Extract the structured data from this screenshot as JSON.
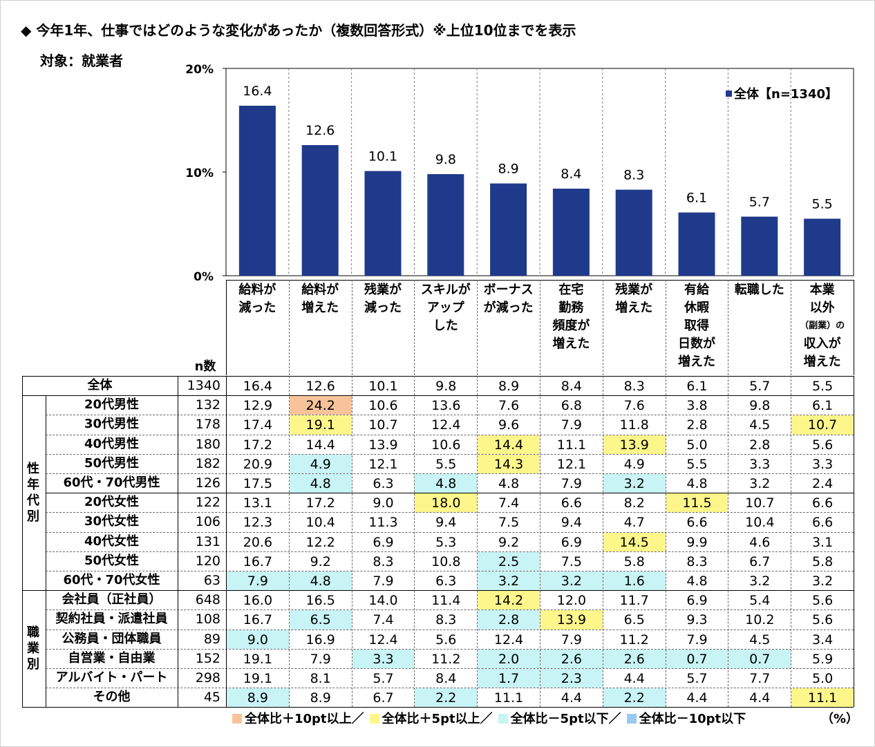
{
  "title": "◆ 今年1年、仕事ではどのような変化があったか（複数回答形式）※上位10位までを表示",
  "subject": "対象：就業者",
  "chart_data": {
    "type": "bar",
    "categories": [
      "給料が減った",
      "給料が増えた",
      "残業が減った",
      "スキルがアップした",
      "ボーナスが減った",
      "在宅勤務頻度が増えた",
      "残業が増えた",
      "有給休暇取得日数が増えた",
      "転職した",
      "本業以外（副業）の収入が増えた"
    ],
    "series": [
      {
        "name": "全体【n=1340】",
        "values": [
          16.4,
          12.6,
          10.1,
          9.8,
          8.9,
          8.4,
          8.3,
          6.1,
          5.7,
          5.5
        ]
      }
    ],
    "ylim": [
      0,
      20
    ],
    "yticks": [
      "0%",
      "10%",
      "20%"
    ],
    "bar_color": "#1f3a8a",
    "legend_position": "top-right"
  },
  "column_headers": [
    [
      "給料が",
      "減った"
    ],
    [
      "給料が",
      "増えた"
    ],
    [
      "残業が",
      "減った"
    ],
    [
      "スキルが",
      "アップ",
      "した"
    ],
    [
      "ボーナス",
      "が減った"
    ],
    [
      "在宅",
      "勤務",
      "頻度が",
      "増えた"
    ],
    [
      "残業が",
      "増えた"
    ],
    [
      "有給",
      "休暇",
      "取得",
      "日数が",
      "増えた"
    ],
    [
      "転職した"
    ],
    [
      "本業",
      "以外",
      "（副業）の",
      "収入が",
      "増えた"
    ]
  ],
  "n_header": "n数",
  "groups": [
    {
      "label": "性年代別",
      "start": 1,
      "end": 10
    },
    {
      "label": "職業別",
      "start": 11,
      "end": 16
    }
  ],
  "rows": [
    {
      "label": "全体",
      "n": "1340",
      "values": [
        "16.4",
        "12.6",
        "10.1",
        "9.8",
        "8.9",
        "8.4",
        "8.3",
        "6.1",
        "5.7",
        "5.5"
      ],
      "hl": [
        "",
        "",
        "",
        "",
        "",
        "",
        "",
        "",
        "",
        ""
      ]
    },
    {
      "label": "20代男性",
      "n": "132",
      "values": [
        "12.9",
        "24.2",
        "10.6",
        "13.6",
        "7.6",
        "6.8",
        "7.6",
        "3.8",
        "9.8",
        "6.1"
      ],
      "hl": [
        "",
        "o",
        "",
        "",
        "",
        "",
        "",
        "",
        "",
        ""
      ]
    },
    {
      "label": "30代男性",
      "n": "178",
      "values": [
        "17.4",
        "19.1",
        "10.7",
        "12.4",
        "9.6",
        "7.9",
        "11.8",
        "2.8",
        "4.5",
        "10.7"
      ],
      "hl": [
        "",
        "y",
        "",
        "",
        "",
        "",
        "",
        "",
        "",
        "y"
      ]
    },
    {
      "label": "40代男性",
      "n": "180",
      "values": [
        "17.2",
        "14.4",
        "13.9",
        "10.6",
        "14.4",
        "11.1",
        "13.9",
        "5.0",
        "2.8",
        "5.6"
      ],
      "hl": [
        "",
        "",
        "",
        "",
        "y",
        "",
        "y",
        "",
        "",
        ""
      ]
    },
    {
      "label": "50代男性",
      "n": "182",
      "values": [
        "20.9",
        "4.9",
        "12.1",
        "5.5",
        "14.3",
        "12.1",
        "4.9",
        "5.5",
        "3.3",
        "3.3"
      ],
      "hl": [
        "",
        "c",
        "",
        "",
        "y",
        "",
        "",
        "",
        "",
        ""
      ]
    },
    {
      "label": "60代・70代男性",
      "n": "126",
      "values": [
        "17.5",
        "4.8",
        "6.3",
        "4.8",
        "4.8",
        "7.9",
        "3.2",
        "4.8",
        "3.2",
        "2.4"
      ],
      "hl": [
        "",
        "c",
        "",
        "c",
        "",
        "",
        "c",
        "",
        "",
        ""
      ]
    },
    {
      "label": "20代女性",
      "n": "122",
      "values": [
        "13.1",
        "17.2",
        "9.0",
        "18.0",
        "7.4",
        "6.6",
        "8.2",
        "11.5",
        "10.7",
        "6.6"
      ],
      "hl": [
        "",
        "",
        "",
        "y",
        "",
        "",
        "",
        "y",
        "",
        ""
      ]
    },
    {
      "label": "30代女性",
      "n": "106",
      "values": [
        "12.3",
        "10.4",
        "11.3",
        "9.4",
        "7.5",
        "9.4",
        "4.7",
        "6.6",
        "10.4",
        "6.6"
      ],
      "hl": [
        "",
        "",
        "",
        "",
        "",
        "",
        "",
        "",
        "",
        ""
      ]
    },
    {
      "label": "40代女性",
      "n": "131",
      "values": [
        "20.6",
        "12.2",
        "6.9",
        "5.3",
        "9.2",
        "6.9",
        "14.5",
        "9.9",
        "4.6",
        "3.1"
      ],
      "hl": [
        "",
        "",
        "",
        "",
        "",
        "",
        "y",
        "",
        "",
        ""
      ]
    },
    {
      "label": "50代女性",
      "n": "120",
      "values": [
        "16.7",
        "9.2",
        "8.3",
        "10.8",
        "2.5",
        "7.5",
        "5.8",
        "8.3",
        "6.7",
        "5.8"
      ],
      "hl": [
        "",
        "",
        "",
        "",
        "c",
        "",
        "",
        "",
        "",
        ""
      ]
    },
    {
      "label": "60代・70代女性",
      "n": "63",
      "values": [
        "7.9",
        "4.8",
        "7.9",
        "6.3",
        "3.2",
        "3.2",
        "1.6",
        "4.8",
        "3.2",
        "3.2"
      ],
      "hl": [
        "c",
        "c",
        "",
        "",
        "c",
        "c",
        "c",
        "",
        "",
        ""
      ]
    },
    {
      "label": "会社員（正社員）",
      "n": "648",
      "values": [
        "16.0",
        "16.5",
        "14.0",
        "11.4",
        "14.2",
        "12.0",
        "11.7",
        "6.9",
        "5.4",
        "5.6"
      ],
      "hl": [
        "",
        "",
        "",
        "",
        "y",
        "",
        "",
        "",
        "",
        ""
      ]
    },
    {
      "label": "契約社員・派遣社員",
      "n": "108",
      "values": [
        "16.7",
        "6.5",
        "7.4",
        "8.3",
        "2.8",
        "13.9",
        "6.5",
        "9.3",
        "10.2",
        "5.6"
      ],
      "hl": [
        "",
        "c",
        "",
        "",
        "c",
        "y",
        "",
        "",
        "",
        ""
      ]
    },
    {
      "label": "公務員・団体職員",
      "n": "89",
      "values": [
        "9.0",
        "16.9",
        "12.4",
        "5.6",
        "12.4",
        "7.9",
        "11.2",
        "7.9",
        "4.5",
        "3.4"
      ],
      "hl": [
        "c",
        "",
        "",
        "",
        "",
        "",
        "",
        "",
        "",
        ""
      ]
    },
    {
      "label": "自営業・自由業",
      "n": "152",
      "values": [
        "19.1",
        "7.9",
        "3.3",
        "11.2",
        "2.0",
        "2.6",
        "2.6",
        "0.7",
        "0.7",
        "5.9"
      ],
      "hl": [
        "",
        "",
        "c",
        "",
        "c",
        "c",
        "c",
        "c",
        "c",
        ""
      ]
    },
    {
      "label": "アルバイト・パート",
      "n": "298",
      "values": [
        "19.1",
        "8.1",
        "5.7",
        "8.4",
        "1.7",
        "2.3",
        "4.4",
        "5.7",
        "7.7",
        "5.0"
      ],
      "hl": [
        "",
        "",
        "",
        "",
        "c",
        "c",
        "",
        "",
        "",
        ""
      ]
    },
    {
      "label": "その他",
      "n": "45",
      "values": [
        "8.9",
        "8.9",
        "6.7",
        "2.2",
        "11.1",
        "4.4",
        "2.2",
        "4.4",
        "4.4",
        "11.1"
      ],
      "hl": [
        "c",
        "",
        "",
        "c",
        "",
        "",
        "c",
        "",
        "",
        "y"
      ]
    }
  ],
  "highlight_colors": {
    "o": "#f8c39a",
    "y": "#fdf68a",
    "c": "#c8f4f5",
    "b": "#9ac8f0"
  },
  "legend": [
    {
      "key": "o",
      "label": "全体比＋10pt以上／"
    },
    {
      "key": "y",
      "label": "全体比＋5pt以上／"
    },
    {
      "key": "c",
      "label": "全体比－5pt以下／"
    },
    {
      "key": "b",
      "label": "全体比－10pt以下"
    }
  ],
  "unit": "（%）"
}
